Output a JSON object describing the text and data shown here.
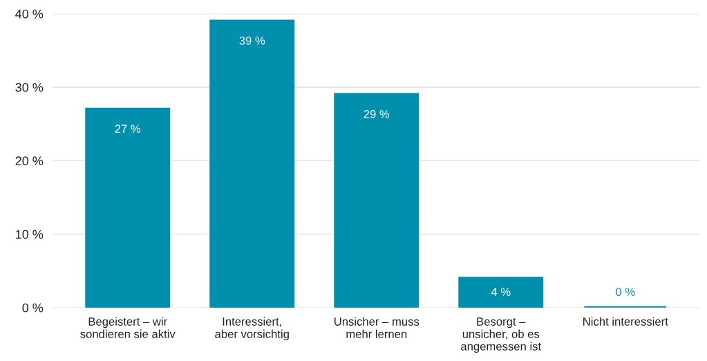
{
  "chart_data": {
    "type": "bar",
    "categories": [
      "Begeistert – wir\nsondieren sie aktiv",
      "Interessiert,\naber vorsichtig",
      "Unsicher – muss\nmehr lernen",
      "Besorgt –\nunsicher, ob es\nangemessen ist",
      "Nicht interessiert"
    ],
    "values": [
      27,
      39,
      29,
      4,
      0
    ],
    "color": "#008fad",
    "value_labels": [
      "27 %",
      "39 %",
      "29 %",
      "4 %",
      "0 %"
    ],
    "ylim": [
      0,
      40
    ],
    "yticks": [
      {
        "value": 0,
        "label": "0 %"
      },
      {
        "value": 10,
        "label": "10 %"
      },
      {
        "value": 20,
        "label": "20 %"
      },
      {
        "value": 30,
        "label": "30 %"
      },
      {
        "value": 40,
        "label": "40 %"
      }
    ],
    "grid": "y",
    "legend": false
  }
}
